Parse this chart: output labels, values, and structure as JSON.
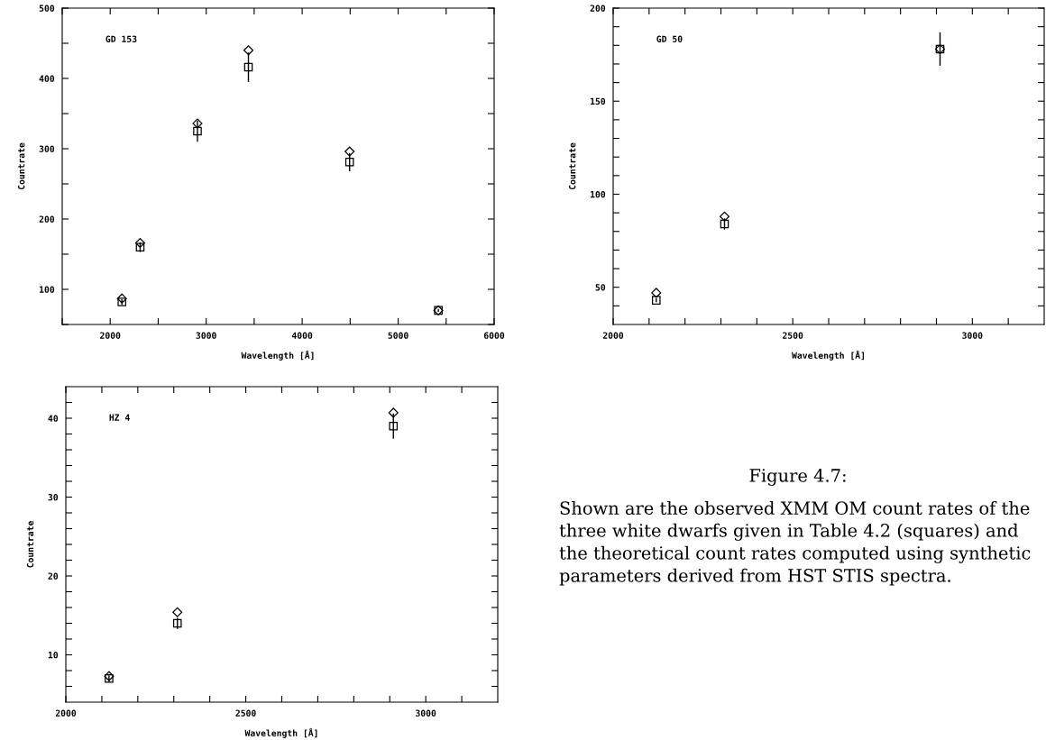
{
  "chart_data": [
    {
      "type": "scatter",
      "xlabel": "Wavelength [Å]",
      "ylabel": "Countrate",
      "annotations": [
        "GD 153"
      ],
      "xlim": [
        1500,
        6000
      ],
      "ylim": [
        50,
        500
      ],
      "xticks": [
        {
          "value": 1500,
          "label": null
        },
        2000,
        {
          "value": 2500,
          "label": null
        },
        3000,
        {
          "value": 3500,
          "label": null
        },
        4000,
        {
          "value": 4500,
          "label": null
        },
        5000,
        {
          "value": 5500,
          "label": null
        },
        6000
      ],
      "yticks": [
        {
          "value": 50,
          "label": null
        },
        100,
        {
          "value": 150,
          "label": null
        },
        200,
        {
          "value": 250,
          "label": null
        },
        300,
        {
          "value": 350,
          "label": null
        },
        400,
        {
          "value": 450,
          "label": null
        },
        500
      ],
      "series": [
        {
          "color": "#000000",
          "marker": "square",
          "x": [
            2122,
            2312,
            2909,
            3440,
            4494,
            5419
          ],
          "values": [
            82,
            160,
            325,
            416,
            281,
            70
          ],
          "errors": [
            4,
            7,
            15,
            21,
            13,
            2
          ]
        },
        {
          "color": "#000000",
          "marker": "diamond",
          "x": [
            2122,
            2312,
            2909,
            3440,
            4494,
            5419
          ],
          "values": [
            87,
            166,
            336,
            440,
            296,
            70
          ]
        }
      ]
    },
    {
      "type": "scatter",
      "xlabel": "Wavelength [Å]",
      "ylabel": "Countrate",
      "annotations": [
        "GD 50"
      ],
      "xlim": [
        2000,
        3200
      ],
      "ylim": [
        30,
        200
      ],
      "xticks": [
        2000,
        {
          "value": 2100,
          "label": null
        },
        {
          "value": 2200,
          "label": null
        },
        {
          "value": 2300,
          "label": null
        },
        {
          "value": 2400,
          "label": null
        },
        2500,
        {
          "value": 2600,
          "label": null
        },
        {
          "value": 2700,
          "label": null
        },
        {
          "value": 2800,
          "label": null
        },
        {
          "value": 2900,
          "label": null
        },
        3000,
        {
          "value": 3100,
          "label": null
        }
      ],
      "yticks": [
        {
          "value": 40,
          "label": null
        },
        50,
        {
          "value": 60,
          "label": null
        },
        {
          "value": 70,
          "label": null
        },
        {
          "value": 80,
          "label": null
        },
        {
          "value": 90,
          "label": null
        },
        100,
        {
          "value": 110,
          "label": null
        },
        {
          "value": 120,
          "label": null
        },
        {
          "value": 130,
          "label": null
        },
        {
          "value": 140,
          "label": null
        },
        150,
        {
          "value": 160,
          "label": null
        },
        {
          "value": 170,
          "label": null
        },
        {
          "value": 180,
          "label": null
        },
        {
          "value": 190,
          "label": null
        },
        200
      ],
      "series": [
        {
          "color": "#000000",
          "marker": "square",
          "x": [
            2120,
            2310,
            2910
          ],
          "values": [
            43,
            84,
            178
          ],
          "errors": [
            1,
            3,
            9
          ]
        },
        {
          "color": "#000000",
          "marker": "diamond",
          "x": [
            2120,
            2310,
            2910
          ],
          "values": [
            47,
            88,
            178
          ]
        }
      ]
    },
    {
      "type": "scatter",
      "xlabel": "Wavelength [Å]",
      "ylabel": "Countrate",
      "annotations": [
        "HZ 4"
      ],
      "xlim": [
        2000,
        3200
      ],
      "ylim": [
        4,
        44
      ],
      "xticks": [
        2000,
        {
          "value": 2100,
          "label": null
        },
        {
          "value": 2200,
          "label": null
        },
        {
          "value": 2300,
          "label": null
        },
        {
          "value": 2400,
          "label": null
        },
        2500,
        {
          "value": 2600,
          "label": null
        },
        {
          "value": 2700,
          "label": null
        },
        {
          "value": 2800,
          "label": null
        },
        {
          "value": 2900,
          "label": null
        },
        3000,
        {
          "value": 3100,
          "label": null
        }
      ],
      "yticks": [
        {
          "value": 6,
          "label": null
        },
        {
          "value": 8,
          "label": null
        },
        10,
        {
          "value": 12,
          "label": null
        },
        {
          "value": 14,
          "label": null
        },
        {
          "value": 16,
          "label": null
        },
        {
          "value": 18,
          "label": null
        },
        20,
        {
          "value": 22,
          "label": null
        },
        {
          "value": 24,
          "label": null
        },
        {
          "value": 26,
          "label": null
        },
        {
          "value": 28,
          "label": null
        },
        30,
        {
          "value": 32,
          "label": null
        },
        {
          "value": 34,
          "label": null
        },
        {
          "value": 36,
          "label": null
        },
        {
          "value": 38,
          "label": null
        },
        40,
        {
          "value": 42,
          "label": null
        }
      ],
      "series": [
        {
          "color": "#000000",
          "marker": "square",
          "x": [
            2120,
            2310,
            2910
          ],
          "values": [
            7.0,
            14.0,
            39.0
          ],
          "errors": [
            0.4,
            0.7,
            1.6
          ]
        },
        {
          "color": "#000000",
          "marker": "diamond",
          "x": [
            2120,
            2310,
            2910
          ],
          "values": [
            7.3,
            15.4,
            40.7
          ]
        }
      ]
    },
    {
      "type": "other",
      "title": "Figure 4.7:",
      "annotations": [
        "Shown are the observed XMM OM count rates of the three white dwarfs given in Table 4.2 (squares) and the theoretical count rates computed using synthetic parameters derived from HST STIS spectra."
      ]
    }
  ]
}
